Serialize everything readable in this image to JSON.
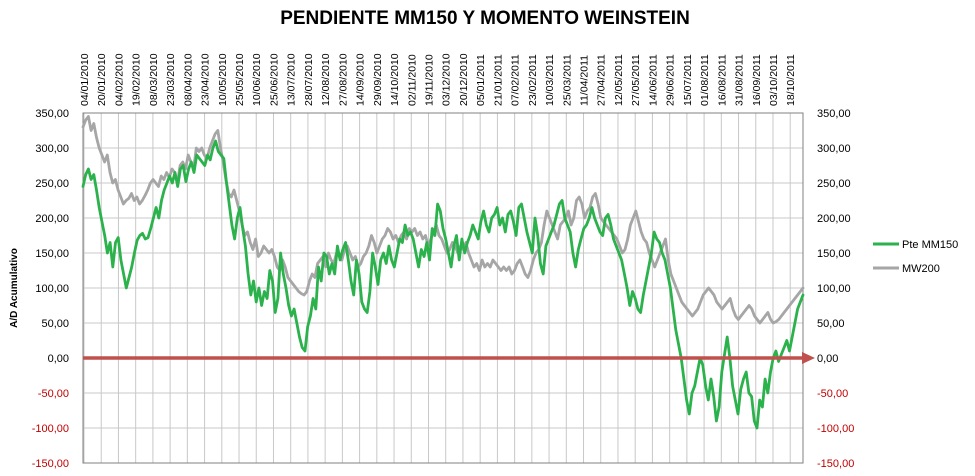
{
  "chart_data": {
    "type": "line",
    "title": "PENDIENTE MM150 Y MOMENTO WEINSTEIN",
    "xlabel": "",
    "ylabel": "A/D Acumulativo",
    "ylim": [
      -150,
      350
    ],
    "y_ticks": [
      "350,00",
      "300,00",
      "250,00",
      "200,00",
      "150,00",
      "100,00",
      "50,00",
      "0,00",
      "-50,00",
      "-100,00",
      "-150,00"
    ],
    "y_tick_values": [
      350,
      300,
      250,
      200,
      150,
      100,
      50,
      0,
      -50,
      -100,
      -150
    ],
    "x_ticks": [
      "04/01/2010",
      "20/01/2010",
      "04/02/2010",
      "19/02/2010",
      "08/03/2010",
      "23/03/2010",
      "08/04/2010",
      "23/04/2010",
      "10/05/2010",
      "25/05/2010",
      "10/06/2010",
      "25/06/2010",
      "13/07/2010",
      "28/07/2010",
      "12/08/2010",
      "27/08/2010",
      "14/09/2010",
      "29/09/2010",
      "14/10/2010",
      "02/11/2010",
      "19/11/2010",
      "03/12/2010",
      "20/12/2010",
      "05/01/2011",
      "21/01/2011",
      "07/02/2011",
      "23/02/2011",
      "10/03/2011",
      "25/03/2011",
      "11/04/2011",
      "27/04/2011",
      "12/05/2011",
      "27/05/2011",
      "14/06/2011",
      "29/06/2011",
      "15/07/2011",
      "01/08/2011",
      "16/08/2011",
      "31/08/2011",
      "16/09/2011",
      "03/10/2011",
      "18/10/2011"
    ],
    "zero_line": {
      "value": 0,
      "color": "#c0504d"
    },
    "grid": true,
    "legend_position": "right",
    "series": [
      {
        "name": "Pte MM150",
        "color": "#2bb24c",
        "values": [
          245,
          262,
          270,
          255,
          262,
          240,
          215,
          195,
          175,
          150,
          165,
          130,
          165,
          172,
          140,
          120,
          100,
          115,
          130,
          150,
          168,
          175,
          178,
          170,
          172,
          185,
          200,
          215,
          200,
          225,
          240,
          250,
          260,
          250,
          265,
          245,
          270,
          275,
          252,
          270,
          280,
          265,
          290,
          285,
          280,
          275,
          290,
          283,
          300,
          310,
          295,
          290,
          285,
          250,
          220,
          190,
          170,
          200,
          215,
          185,
          160,
          120,
          90,
          110,
          80,
          100,
          75,
          95,
          85,
          125,
          110,
          65,
          85,
          150,
          120,
          100,
          75,
          60,
          70,
          50,
          30,
          15,
          10,
          45,
          60,
          85,
          70,
          130,
          110,
          150,
          145,
          120,
          135,
          120,
          160,
          140,
          155,
          165,
          140,
          110,
          90,
          140,
          120,
          80,
          70,
          65,
          95,
          150,
          130,
          105,
          140,
          150,
          135,
          160,
          140,
          130,
          150,
          170,
          165,
          190,
          175,
          180,
          170,
          150,
          130,
          155,
          145,
          165,
          140,
          185,
          175,
          220,
          210,
          185,
          170,
          150,
          130,
          160,
          175,
          140,
          170,
          150,
          165,
          175,
          190,
          180,
          170,
          195,
          210,
          190,
          180,
          200,
          205,
          215,
          190,
          200,
          180,
          205,
          210,
          195,
          175,
          215,
          220,
          200,
          180,
          165,
          150,
          200,
          175,
          135,
          120,
          160,
          170,
          180,
          190,
          205,
          220,
          225,
          200,
          190,
          180,
          150,
          130,
          155,
          170,
          185,
          190,
          200,
          215,
          200,
          190,
          180,
          175,
          200,
          205,
          190,
          170,
          160,
          150,
          140,
          120,
          100,
          75,
          95,
          85,
          70,
          65,
          90,
          110,
          130,
          150,
          180,
          170,
          165,
          150,
          140,
          120,
          100,
          70,
          40,
          20,
          0,
          -30,
          -60,
          -80,
          -50,
          -40,
          -20,
          0,
          -10,
          -40,
          -60,
          -30,
          -55,
          -90,
          -70,
          -20,
          5,
          30,
          0,
          -40,
          -60,
          -80,
          -45,
          -30,
          -20,
          -50,
          -55,
          -90,
          -100,
          -60,
          -70,
          -30,
          -50,
          -20,
          0,
          10,
          -5,
          5,
          15,
          25,
          10,
          30,
          50,
          70,
          80,
          90
        ]
      },
      {
        "name": "MW200",
        "color": "#a6a6a6",
        "values": [
          330,
          340,
          345,
          325,
          335,
          315,
          300,
          290,
          280,
          290,
          265,
          250,
          255,
          240,
          230,
          220,
          225,
          228,
          235,
          225,
          230,
          220,
          225,
          232,
          240,
          250,
          255,
          250,
          245,
          260,
          255,
          265,
          258,
          270,
          265,
          250,
          275,
          280,
          270,
          290,
          280,
          270,
          300,
          295,
          300,
          290,
          285,
          300,
          310,
          320,
          325,
          300,
          280,
          255,
          235,
          230,
          240,
          225,
          210,
          190,
          175,
          180,
          165,
          155,
          170,
          145,
          150,
          160,
          155,
          150,
          155,
          145,
          130,
          125,
          140,
          130,
          115,
          110,
          105,
          100,
          95,
          92,
          90,
          95,
          110,
          120,
          115,
          135,
          140,
          145,
          130,
          150,
          140,
          135,
          150,
          145,
          140,
          155,
          160,
          150,
          140,
          145,
          130,
          135,
          145,
          150,
          160,
          175,
          165,
          150,
          160,
          170,
          175,
          185,
          180,
          170,
          175,
          165,
          175,
          180,
          170,
          185,
          180,
          185,
          175,
          180,
          170,
          175,
          160,
          170,
          180,
          190,
          175,
          170,
          160,
          150,
          155,
          165,
          160,
          150,
          160,
          155,
          165,
          150,
          140,
          130,
          135,
          125,
          140,
          130,
          135,
          130,
          140,
          135,
          130,
          125,
          130,
          125,
          130,
          120,
          125,
          135,
          140,
          130,
          120,
          115,
          125,
          140,
          150,
          155,
          165,
          190,
          210,
          200,
          190,
          180,
          170,
          190,
          195,
          200,
          210,
          190,
          200,
          225,
          230,
          220,
          200,
          210,
          215,
          230,
          235,
          220,
          200,
          195,
          190,
          185,
          180,
          175,
          170,
          160,
          150,
          155,
          170,
          190,
          200,
          210,
          195,
          180,
          170,
          165,
          150,
          140,
          130,
          140,
          150,
          160,
          170,
          140,
          120,
          110,
          100,
          90,
          80,
          75,
          70,
          65,
          60,
          65,
          70,
          80,
          90,
          95,
          100,
          95,
          90,
          80,
          75,
          70,
          75,
          80,
          85,
          70,
          60,
          55,
          60,
          65,
          70,
          75,
          70,
          60,
          55,
          50,
          55,
          60,
          65,
          55,
          50,
          52,
          55,
          60,
          65,
          70,
          75,
          80,
          85,
          90,
          95,
          100
        ]
      }
    ]
  }
}
